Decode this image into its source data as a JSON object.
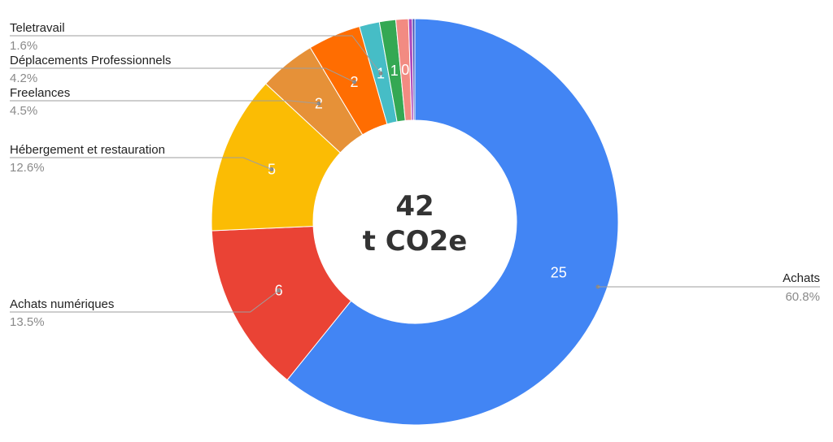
{
  "chart_data": {
    "type": "pie",
    "donut": true,
    "center_value": "42",
    "center_unit": "t CO2e",
    "slices": [
      {
        "name": "Achats",
        "value": 25,
        "value_label": "25",
        "percent_label": "60.8%",
        "color": "#4285F4"
      },
      {
        "name": "Achats numériques",
        "value": 6,
        "value_label": "6",
        "percent_label": "13.5%",
        "color": "#EA4335"
      },
      {
        "name": "Hébergement et restauration",
        "value": 5,
        "value_label": "5",
        "percent_label": "12.6%",
        "color": "#FBBC04"
      },
      {
        "name": "Freelances",
        "value": 2,
        "value_label": "2",
        "percent_label": "4.5%",
        "color": "#E69138"
      },
      {
        "name": "Déplacements Professionnels",
        "value": 2,
        "value_label": "2",
        "percent_label": "4.2%",
        "color": "#FF6D01"
      },
      {
        "name": "Teletravail",
        "value": 1,
        "value_label": "1",
        "percent_label": "1.6%",
        "color": "#46BDC6"
      },
      {
        "name": "",
        "value": 1,
        "value_label": "1",
        "percent_label": "",
        "color": "#34A853"
      },
      {
        "name": "",
        "value": 0,
        "value_label": "0",
        "percent_label": "",
        "color": "#F28B82"
      },
      {
        "name": "",
        "value": 0,
        "value_label": "",
        "percent_label": "",
        "color": "#AB47BC"
      },
      {
        "name": "",
        "value": 0,
        "value_label": "",
        "percent_label": "",
        "color": "#3F51B5"
      }
    ],
    "shares": [
      0.608,
      0.135,
      0.126,
      0.045,
      0.042,
      0.016,
      0.013,
      0.01,
      0.003,
      0.002
    ],
    "legend_placement": "outside-labels"
  }
}
